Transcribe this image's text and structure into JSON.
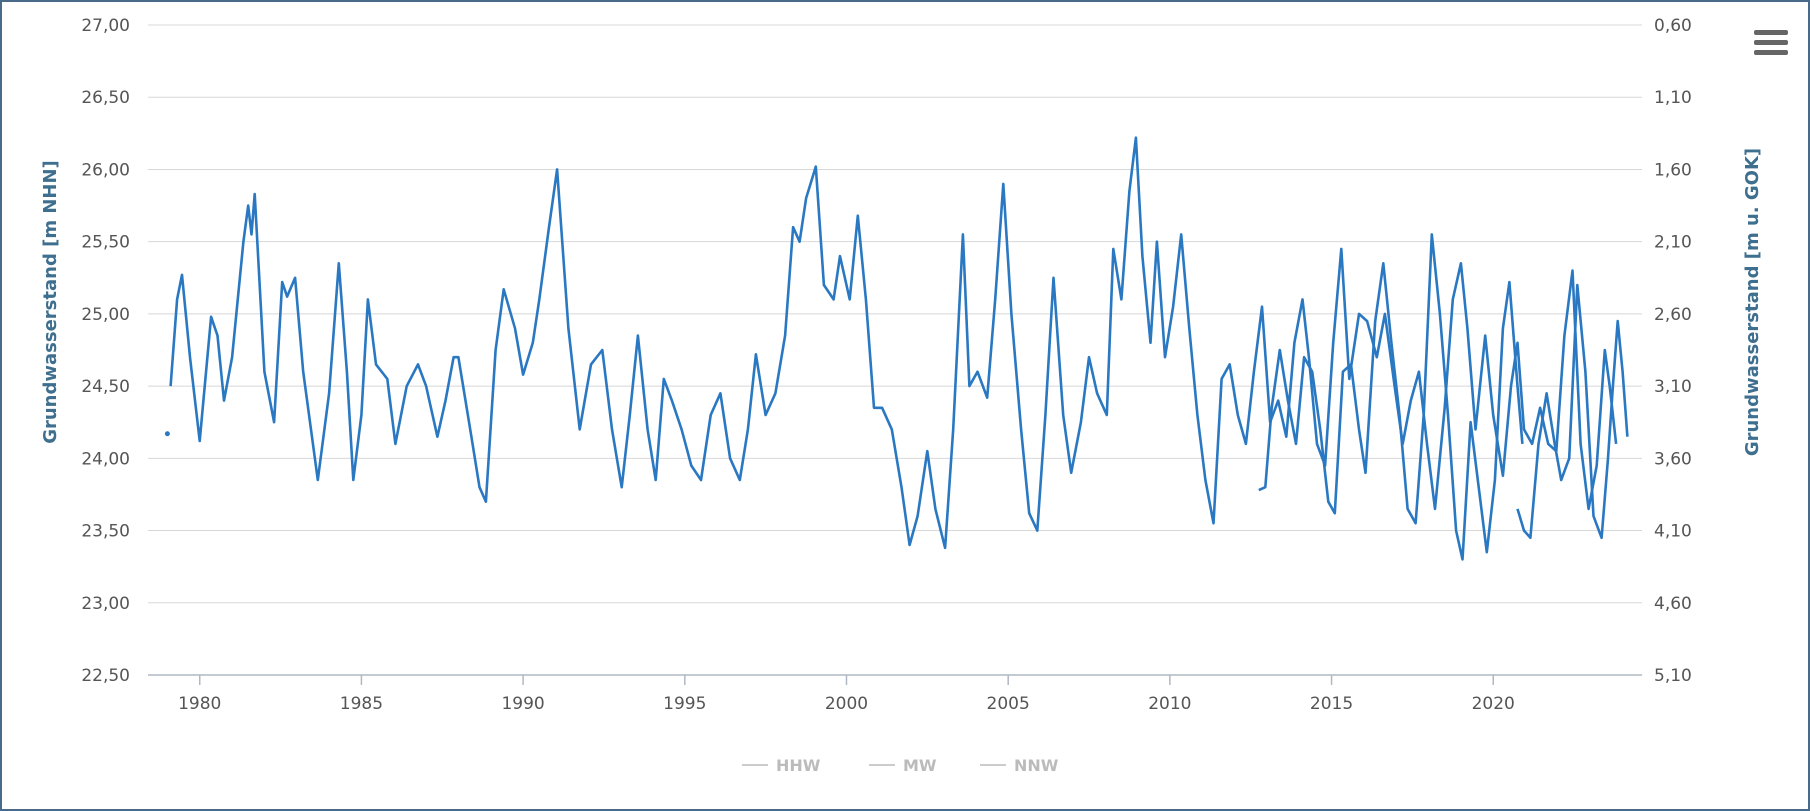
{
  "menu_icon": "hamburger-menu-icon",
  "chart_data": {
    "type": "line",
    "xlabel": "",
    "ylabel": "Grundwasserstand [m NHN]",
    "y2label": "Grundwasserstand [m u. GOK]",
    "xlim": [
      1978.4,
      2024.6
    ],
    "ylim": [
      22.5,
      27.0
    ],
    "x_ticks": [
      1980,
      1985,
      1990,
      1995,
      2000,
      2005,
      2010,
      2015,
      2020
    ],
    "y_ticks": [
      "22,50",
      "23,00",
      "23,50",
      "24,00",
      "24,50",
      "25,00",
      "25,50",
      "26,00",
      "26,50",
      "27,00"
    ],
    "y2_ticks": [
      "5,10",
      "4,60",
      "4,10",
      "3,60",
      "3,10",
      "2,60",
      "2,10",
      "1,60",
      "1,10",
      "0,60"
    ],
    "grid": true,
    "line_color": "#2a78c2",
    "legend_position": "bottom-center",
    "legend": [
      {
        "name": "HHW",
        "color": "#cccccc"
      },
      {
        "name": "MW",
        "color": "#cccccc"
      },
      {
        "name": "NNW",
        "color": "#cccccc"
      }
    ],
    "series": [
      {
        "name": "Grundwasserstand",
        "isolated_point": [
          1979.0,
          24.17
        ],
        "segments": [
          [
            [
              1979.1,
              24.5
            ],
            [
              1979.3,
              25.1
            ],
            [
              1979.45,
              25.27
            ],
            [
              1979.7,
              24.7
            ],
            [
              1980.0,
              24.12
            ],
            [
              1980.35,
              24.98
            ],
            [
              1980.55,
              24.85
            ],
            [
              1980.75,
              24.4
            ],
            [
              1981.0,
              24.7
            ],
            [
              1981.35,
              25.5
            ],
            [
              1981.5,
              25.75
            ],
            [
              1981.6,
              25.55
            ],
            [
              1981.7,
              25.83
            ],
            [
              1982.0,
              24.6
            ],
            [
              1982.3,
              24.25
            ],
            [
              1982.55,
              25.22
            ],
            [
              1982.7,
              25.12
            ],
            [
              1982.95,
              25.25
            ],
            [
              1983.2,
              24.6
            ],
            [
              1983.65,
              23.85
            ],
            [
              1984.0,
              24.45
            ],
            [
              1984.3,
              25.35
            ],
            [
              1984.55,
              24.6
            ],
            [
              1984.75,
              23.85
            ],
            [
              1985.0,
              24.3
            ],
            [
              1985.2,
              25.1
            ],
            [
              1985.45,
              24.65
            ],
            [
              1985.8,
              24.55
            ],
            [
              1986.05,
              24.1
            ],
            [
              1986.4,
              24.5
            ],
            [
              1986.75,
              24.65
            ],
            [
              1987.0,
              24.5
            ],
            [
              1987.35,
              24.15
            ],
            [
              1987.6,
              24.4
            ],
            [
              1987.85,
              24.7
            ],
            [
              1988.0,
              24.7
            ],
            [
              1988.4,
              24.15
            ],
            [
              1988.65,
              23.8
            ],
            [
              1988.85,
              23.7
            ],
            [
              1989.15,
              24.75
            ],
            [
              1989.4,
              25.17
            ],
            [
              1989.75,
              24.9
            ],
            [
              1990.0,
              24.58
            ],
            [
              1990.3,
              24.8
            ],
            [
              1990.5,
              25.1
            ],
            [
              1990.8,
              25.6
            ],
            [
              1991.05,
              26.0
            ],
            [
              1991.4,
              24.9
            ],
            [
              1991.75,
              24.2
            ],
            [
              1992.1,
              24.65
            ],
            [
              1992.45,
              24.75
            ],
            [
              1992.75,
              24.2
            ],
            [
              1993.05,
              23.8
            ],
            [
              1993.3,
              24.3
            ],
            [
              1993.55,
              24.85
            ],
            [
              1993.85,
              24.2
            ],
            [
              1994.1,
              23.85
            ],
            [
              1994.35,
              24.55
            ],
            [
              1994.6,
              24.4
            ],
            [
              1994.9,
              24.2
            ],
            [
              1995.2,
              23.95
            ],
            [
              1995.5,
              23.85
            ],
            [
              1995.8,
              24.3
            ],
            [
              1996.1,
              24.45
            ],
            [
              1996.4,
              24.0
            ],
            [
              1996.7,
              23.85
            ],
            [
              1996.95,
              24.2
            ],
            [
              1997.2,
              24.72
            ],
            [
              1997.5,
              24.3
            ],
            [
              1997.8,
              24.45
            ],
            [
              1998.1,
              24.85
            ],
            [
              1998.35,
              25.6
            ],
            [
              1998.55,
              25.5
            ],
            [
              1998.75,
              25.8
            ],
            [
              1999.05,
              26.02
            ],
            [
              1999.3,
              25.2
            ],
            [
              1999.6,
              25.1
            ],
            [
              1999.8,
              25.4
            ],
            [
              2000.1,
              25.1
            ],
            [
              2000.35,
              25.68
            ],
            [
              2000.6,
              25.1
            ],
            [
              2000.85,
              24.35
            ],
            [
              2001.1,
              24.35
            ],
            [
              2001.4,
              24.2
            ],
            [
              2001.7,
              23.8
            ],
            [
              2001.95,
              23.4
            ],
            [
              2002.2,
              23.6
            ],
            [
              2002.5,
              24.05
            ],
            [
              2002.75,
              23.65
            ],
            [
              2003.05,
              23.38
            ],
            [
              2003.3,
              24.2
            ],
            [
              2003.6,
              25.55
            ],
            [
              2003.8,
              24.5
            ],
            [
              2004.05,
              24.6
            ],
            [
              2004.35,
              24.42
            ],
            [
              2004.6,
              25.1
            ],
            [
              2004.85,
              25.9
            ],
            [
              2005.1,
              25.0
            ],
            [
              2005.4,
              24.2
            ],
            [
              2005.65,
              23.62
            ],
            [
              2005.9,
              23.5
            ],
            [
              2006.15,
              24.3
            ],
            [
              2006.4,
              25.25
            ],
            [
              2006.7,
              24.3
            ],
            [
              2006.95,
              23.9
            ],
            [
              2007.25,
              24.25
            ],
            [
              2007.5,
              24.7
            ],
            [
              2007.75,
              24.45
            ],
            [
              2008.05,
              24.3
            ],
            [
              2008.25,
              25.45
            ],
            [
              2008.5,
              25.1
            ],
            [
              2008.75,
              25.85
            ],
            [
              2008.95,
              26.22
            ],
            [
              2009.15,
              25.4
            ],
            [
              2009.4,
              24.8
            ],
            [
              2009.6,
              25.5
            ],
            [
              2009.85,
              24.7
            ],
            [
              2010.1,
              25.05
            ],
            [
              2010.35,
              25.55
            ],
            [
              2010.6,
              24.9
            ],
            [
              2010.85,
              24.3
            ],
            [
              2011.1,
              23.85
            ],
            [
              2011.35,
              23.55
            ],
            [
              2011.6,
              24.55
            ],
            [
              2011.85,
              24.65
            ],
            [
              2012.1,
              24.3
            ],
            [
              2012.35,
              24.1
            ],
            [
              2012.6,
              24.6
            ],
            [
              2012.85,
              25.05
            ],
            [
              2013.1,
              24.25
            ],
            [
              2013.35,
              24.4
            ],
            [
              2013.6,
              24.15
            ],
            [
              2013.85,
              24.8
            ],
            [
              2014.1,
              25.1
            ],
            [
              2014.3,
              24.7
            ],
            [
              2014.55,
              24.1
            ],
            [
              2014.8,
              23.95
            ],
            [
              2015.05,
              24.8
            ],
            [
              2015.3,
              25.45
            ],
            [
              2015.55,
              24.55
            ],
            [
              2015.85,
              25.0
            ],
            [
              2016.1,
              24.95
            ],
            [
              2016.4,
              24.7
            ],
            [
              2016.65,
              25.0
            ],
            [
              2016.95,
              24.5
            ],
            [
              2017.2,
              24.1
            ],
            [
              2017.45,
              24.4
            ],
            [
              2017.7,
              24.6
            ],
            [
              2017.95,
              24.1
            ],
            [
              2018.2,
              23.65
            ],
            [
              2018.5,
              24.35
            ],
            [
              2018.75,
              25.1
            ],
            [
              2019.0,
              25.35
            ],
            [
              2019.2,
              24.9
            ],
            [
              2019.45,
              24.2
            ],
            [
              2019.75,
              24.85
            ],
            [
              2020.0,
              24.3
            ],
            [
              2020.3,
              23.88
            ],
            [
              2020.55,
              24.5
            ],
            [
              2020.75,
              24.8
            ],
            [
              2020.95,
              24.2
            ],
            [
              2021.2,
              24.1
            ],
            [
              2021.45,
              24.35
            ],
            [
              2021.7,
              24.1
            ],
            [
              2021.95,
              24.05
            ],
            [
              2022.2,
              24.85
            ],
            [
              2022.45,
              25.3
            ],
            [
              2022.7,
              24.1
            ],
            [
              2022.95,
              23.65
            ],
            [
              2023.2,
              23.95
            ],
            [
              2023.45,
              24.75
            ],
            [
              2023.6,
              24.5
            ],
            [
              2023.8,
              24.1
            ]
          ],
          [
            [
              2012.75,
              23.78
            ],
            [
              2012.95,
              23.8
            ],
            [
              2013.15,
              24.35
            ],
            [
              2013.4,
              24.75
            ],
            [
              2013.65,
              24.4
            ],
            [
              2013.9,
              24.1
            ],
            [
              2014.15,
              24.7
            ],
            [
              2014.4,
              24.6
            ],
            [
              2014.65,
              24.2
            ],
            [
              2014.9,
              23.7
            ],
            [
              2015.1,
              23.62
            ],
            [
              2015.35,
              24.6
            ],
            [
              2015.6,
              24.65
            ],
            [
              2015.85,
              24.2
            ],
            [
              2016.05,
              23.9
            ],
            [
              2016.35,
              24.95
            ],
            [
              2016.6,
              25.35
            ],
            [
              2016.85,
              24.8
            ],
            [
              2017.1,
              24.3
            ],
            [
              2017.35,
              23.65
            ],
            [
              2017.6,
              23.55
            ],
            [
              2017.85,
              24.3
            ],
            [
              2018.1,
              25.55
            ],
            [
              2018.35,
              25.0
            ],
            [
              2018.6,
              24.3
            ],
            [
              2018.85,
              23.5
            ],
            [
              2019.05,
              23.3
            ],
            [
              2019.3,
              24.25
            ],
            [
              2019.55,
              23.8
            ],
            [
              2019.8,
              23.35
            ],
            [
              2020.05,
              23.85
            ],
            [
              2020.3,
              24.9
            ],
            [
              2020.5,
              25.22
            ],
            [
              2020.75,
              24.5
            ],
            [
              2020.9,
              24.1
            ]
          ],
          [
            [
              2020.75,
              23.65
            ],
            [
              2020.95,
              23.5
            ],
            [
              2021.15,
              23.45
            ],
            [
              2021.4,
              24.1
            ],
            [
              2021.65,
              24.45
            ],
            [
              2021.9,
              24.1
            ],
            [
              2022.1,
              23.85
            ],
            [
              2022.35,
              24.0
            ],
            [
              2022.6,
              25.2
            ],
            [
              2022.85,
              24.6
            ],
            [
              2023.1,
              23.6
            ],
            [
              2023.35,
              23.45
            ],
            [
              2023.55,
              24.0
            ],
            [
              2023.7,
              24.5
            ],
            [
              2023.85,
              24.95
            ],
            [
              2024.0,
              24.6
            ],
            [
              2024.15,
              24.15
            ]
          ]
        ]
      }
    ]
  }
}
